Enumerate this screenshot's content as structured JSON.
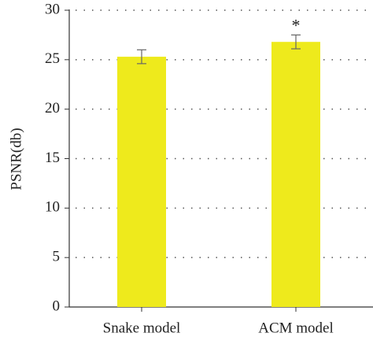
{
  "chart_data": {
    "type": "bar",
    "ylabel": "PSNR(db)",
    "categories": [
      "Snake model",
      "ACM model"
    ],
    "values": [
      25.3,
      26.8
    ],
    "errors": [
      0.7,
      0.7
    ],
    "color": "#eeea1c",
    "annotation": "*",
    "ylim": [
      0,
      30
    ],
    "yticks": [
      0,
      5,
      10,
      15,
      20,
      25,
      30
    ],
    "grid": true
  }
}
